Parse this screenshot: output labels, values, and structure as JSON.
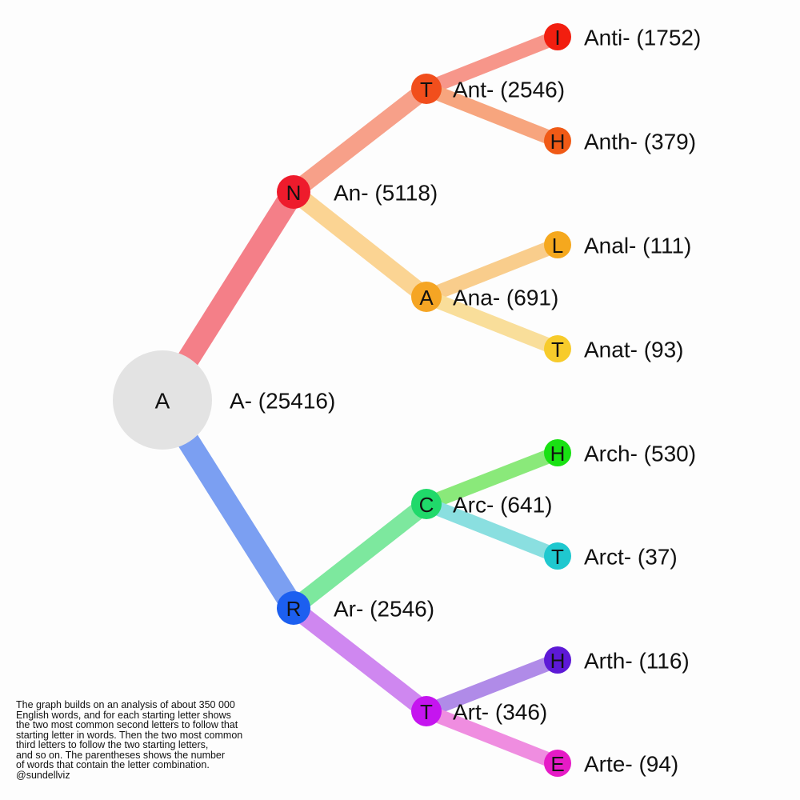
{
  "tree": {
    "root": {
      "letter": "A",
      "label": "A- (25416)",
      "color": "#e3e3e3"
    },
    "level1": [
      {
        "id": "N",
        "letter": "N",
        "label": "An- (5118)",
        "color": "#ee1b2c",
        "edge_color": "#f47f88"
      },
      {
        "id": "R",
        "letter": "R",
        "label": "Ar- (2546)",
        "color": "#1c5ff0",
        "edge_color": "#7b9ff2"
      }
    ],
    "level2": [
      {
        "id": "NT",
        "parent": "N",
        "letter": "T",
        "label": "Ant- (2546)",
        "color": "#f14e1c",
        "edge_color": "#f7a089"
      },
      {
        "id": "NA",
        "parent": "N",
        "letter": "A",
        "label": "Ana- (691)",
        "color": "#f5a524",
        "edge_color": "#fbd493"
      },
      {
        "id": "RC",
        "parent": "R",
        "letter": "C",
        "label": "Arc- (641)",
        "color": "#20d96a",
        "edge_color": "#7de89e"
      },
      {
        "id": "RT",
        "parent": "R",
        "letter": "T",
        "label": "Art- (346)",
        "color": "#c515ef",
        "edge_color": "#cf87f0"
      }
    ],
    "level3": [
      {
        "parent": "NT",
        "letter": "I",
        "label": "Anti- (1752)",
        "color": "#f21e0f",
        "edge_color": "#f7968a"
      },
      {
        "parent": "NT",
        "letter": "H",
        "label": "Anth- (379)",
        "color": "#f05a16",
        "edge_color": "#f7a57e"
      },
      {
        "parent": "NA",
        "letter": "L",
        "label": "Anal- (111)",
        "color": "#f5a81e",
        "edge_color": "#f9cd8c"
      },
      {
        "parent": "NA",
        "letter": "T",
        "label": "Anat- (93)",
        "color": "#f7cb2b",
        "edge_color": "#f9de9a"
      },
      {
        "parent": "RC",
        "letter": "H",
        "label": "Arch- (530)",
        "color": "#19e113",
        "edge_color": "#8ae97a"
      },
      {
        "parent": "RC",
        "letter": "T",
        "label": "Arct- (37)",
        "color": "#1fc8cf",
        "edge_color": "#8adfe0"
      },
      {
        "parent": "RT",
        "letter": "H",
        "label": "Arth- (116)",
        "color": "#5d19d6",
        "edge_color": "#b08be8"
      },
      {
        "parent": "RT",
        "letter": "E",
        "label": "Arte- (94)",
        "color": "#e61bc6",
        "edge_color": "#ef8de0"
      }
    ]
  },
  "note": {
    "lines": [
      "The graph builds on an analysis of about 350 000",
      "English words, and for each starting letter shows",
      "the two most common second letters to follow that",
      "starting letter in words. Then the two most common",
      "third letters to follow the two starting letters,",
      "and so on. The parentheses shows the number",
      "of words that contain the letter combination.",
      "@sundellviz"
    ]
  }
}
